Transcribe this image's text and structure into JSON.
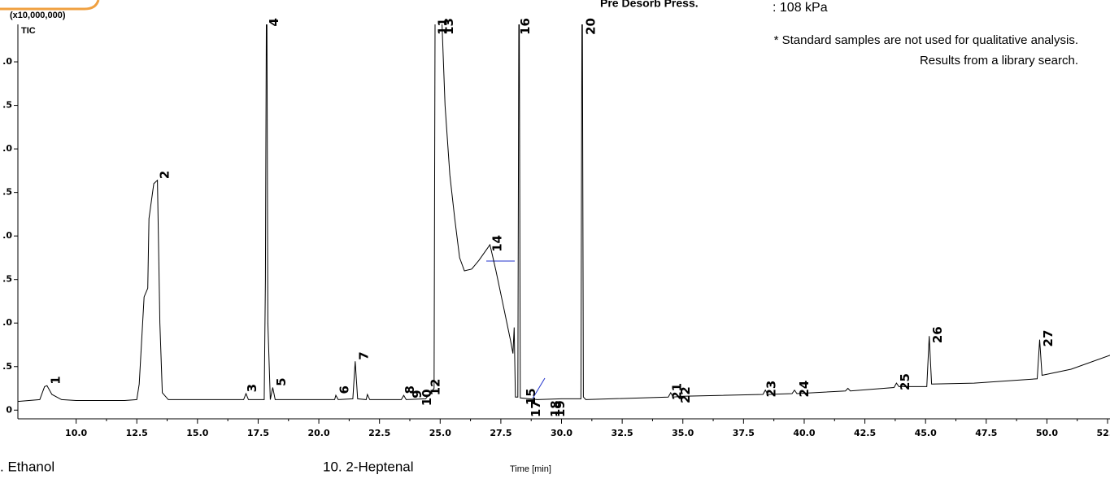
{
  "chart_data": {
    "type": "line",
    "y_unit_label": "(x10,000,000)",
    "x_label": "Time [min]",
    "xlim": [
      7.6,
      52.6
    ],
    "ylim": [
      -0.1,
      4.43
    ],
    "xticks": [
      {
        "value": 10,
        "label": "10.0"
      },
      {
        "value": 12.5,
        "label": "12.5"
      },
      {
        "value": 15,
        "label": "15.0"
      },
      {
        "value": 17.5,
        "label": "17.5"
      },
      {
        "value": 20,
        "label": "20.0"
      },
      {
        "value": 22.5,
        "label": "22.5"
      },
      {
        "value": 25,
        "label": "25.0"
      },
      {
        "value": 27.5,
        "label": "27.5"
      },
      {
        "value": 30,
        "label": "30.0"
      },
      {
        "value": 32.5,
        "label": "32.5"
      },
      {
        "value": 35,
        "label": "35.0"
      },
      {
        "value": 37.5,
        "label": "37.5"
      },
      {
        "value": 40,
        "label": "40.0"
      },
      {
        "value": 42.5,
        "label": "42.5"
      },
      {
        "value": 45,
        "label": "45.0"
      },
      {
        "value": 47.5,
        "label": "47.5"
      },
      {
        "value": 50,
        "label": "50.0"
      },
      {
        "value": 52.5,
        "label": "52.5"
      }
    ],
    "yticks": [
      0,
      {
        "value": 0.5,
        "label": ".5"
      },
      {
        "value": 1,
        "label": ".0"
      },
      {
        "value": 1.5,
        "label": ".5"
      },
      {
        "value": 2,
        "label": ".0"
      },
      {
        "value": 2.5,
        "label": ".5"
      },
      {
        "value": 3,
        "label": ".0"
      },
      {
        "value": 3.5,
        "label": ".5"
      },
      {
        "value": 4,
        "label": ".0"
      }
    ],
    "series": [
      {
        "name": "TIC",
        "color": "#000000",
        "x": [
          7.6,
          8.5,
          8.7,
          8.8,
          9.0,
          9.4,
          10,
          12.0,
          12.5,
          12.6,
          12.8,
          12.95,
          13.0,
          13.2,
          13.35,
          13.45,
          13.55,
          13.8,
          16.9,
          17.0,
          17.1,
          17.75,
          17.8,
          17.85,
          17.9,
          18.0,
          18.1,
          18.2,
          20.65,
          20.7,
          20.8,
          21.4,
          21.5,
          21.6,
          21.95,
          22.0,
          22.1,
          23.4,
          23.5,
          23.6,
          24.4,
          24.6,
          24.75,
          24.8,
          25.0,
          25.2,
          25.4,
          25.6,
          25.8,
          26.0,
          26.3,
          26.6,
          26.9,
          27.05,
          27.15,
          27.3,
          27.6,
          27.9,
          28.0,
          28.05,
          28.1,
          28.2,
          28.25,
          28.3,
          29.0,
          30.0,
          30.8,
          30.85,
          30.9,
          31.0,
          34.4,
          34.5,
          34.6,
          35,
          38.3,
          38.4,
          38.5,
          39.5,
          39.6,
          39.7,
          41.7,
          41.8,
          41.9,
          43.7,
          43.8,
          43.9,
          45.05,
          45.15,
          45.25,
          47,
          49.6,
          49.7,
          49.8,
          51,
          52.6
        ],
        "values": [
          0.1,
          0.12,
          0.27,
          0.28,
          0.18,
          0.12,
          0.11,
          0.11,
          0.12,
          0.3,
          1.3,
          1.4,
          2.2,
          2.6,
          2.64,
          1.0,
          0.2,
          0.12,
          0.12,
          0.19,
          0.12,
          0.12,
          1.5,
          5.5,
          1.0,
          0.12,
          0.26,
          0.12,
          0.12,
          0.17,
          0.12,
          0.13,
          0.56,
          0.13,
          0.12,
          0.18,
          0.12,
          0.12,
          0.17,
          0.12,
          0.13,
          0.2,
          0.25,
          5.5,
          5.0,
          3.5,
          2.7,
          2.2,
          1.75,
          1.6,
          1.62,
          1.72,
          1.84,
          1.9,
          1.78,
          1.6,
          1.2,
          0.8,
          0.65,
          0.95,
          0.15,
          0.15,
          5.5,
          0.14,
          0.12,
          0.13,
          0.13,
          5.5,
          0.15,
          0.12,
          0.15,
          0.2,
          0.15,
          0.16,
          0.18,
          0.23,
          0.18,
          0.19,
          0.23,
          0.19,
          0.22,
          0.25,
          0.22,
          0.26,
          0.31,
          0.27,
          0.27,
          0.85,
          0.3,
          0.31,
          0.36,
          0.81,
          0.4,
          0.47,
          0.63
        ]
      }
    ],
    "peak_labels": [
      {
        "label": "1",
        "x": 8.9
      },
      {
        "label": "2",
        "x": 13.4
      },
      {
        "label": "3",
        "x": 17.0
      },
      {
        "label": "4",
        "x": 17.9
      },
      {
        "label": "5",
        "x": 18.2
      },
      {
        "label": "6",
        "x": 20.8
      },
      {
        "label": "7",
        "x": 21.6
      },
      {
        "label": "8",
        "x": 23.5
      },
      {
        "label": "9",
        "x": 23.8
      },
      {
        "label": "10",
        "x": 24.2
      },
      {
        "label": "11",
        "x": 24.85
      },
      {
        "label": "12",
        "x": 24.55
      },
      {
        "label": "13",
        "x": 25.1
      },
      {
        "label": "14",
        "x": 27.1
      },
      {
        "label": "15",
        "x": 28.5
      },
      {
        "label": "16",
        "x": 28.25
      },
      {
        "label": "17",
        "x": 28.7
      },
      {
        "label": "18",
        "x": 29.5
      },
      {
        "label": "19",
        "x": 29.7
      },
      {
        "label": "20",
        "x": 30.95
      },
      {
        "label": "21",
        "x": 34.5
      },
      {
        "label": "22",
        "x": 34.85
      },
      {
        "label": "23",
        "x": 38.4
      },
      {
        "label": "24",
        "x": 39.75
      },
      {
        "label": "25",
        "x": 43.9
      },
      {
        "label": "26",
        "x": 45.25
      },
      {
        "label": "27",
        "x": 49.8
      }
    ]
  },
  "header": {
    "pressure_label": "Pre Desorb Press.",
    "pressure_value": ": 108 kPa"
  },
  "notes": [
    "* Standard samples are not used for qualitative analysis.",
    "Results from a library search."
  ],
  "compound_list": [
    ". Ethanol",
    "10. 2-Heptenal"
  ]
}
